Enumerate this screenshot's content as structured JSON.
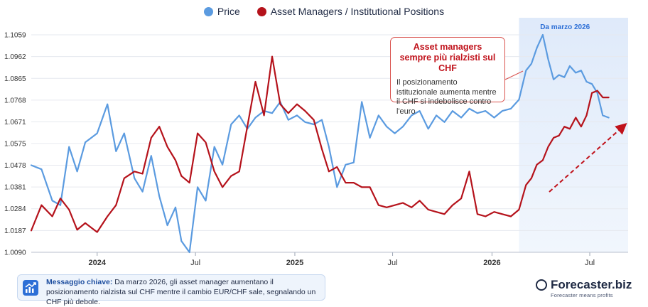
{
  "legend": {
    "price_label": "Price",
    "positions_label": "Asset Managers / Institutional Positions"
  },
  "highlight": {
    "label": "Da marzo 2026"
  },
  "callout": {
    "title_line1": "Asset managers",
    "title_line2": "sempre più rialzisti sul CHF",
    "body": "Il posizionamento istituzionale aumenta mentre il CHF si indebolisce contro l'euro"
  },
  "key_message": {
    "label": "Messaggio chiave:",
    "text": "Da marzo 2026, gli asset manager aumentano il posizionamento rialzista sul CHF mentre il cambio EUR/CHF sale, segnalando un CHF più debole."
  },
  "brand": {
    "name": "Forecaster.biz",
    "tagline": "Forecaster means profits"
  },
  "colors": {
    "price": "#5b9be0",
    "positions": "#b5121b",
    "highlight": "#e8f0fb"
  },
  "icons": {
    "key_message": "chart-trend-icon",
    "brand": "forecaster-logo-icon"
  },
  "chart_data": {
    "type": "line",
    "x_range": [
      "2023-09-01",
      "2026-09-10"
    ],
    "ylim": [
      1.009,
      1.1059
    ],
    "y_ticks": [
      "1.1059",
      "1.0962",
      "1.0865",
      "1.0768",
      "1.0671",
      "1.0575",
      "1.0478",
      "1.0381",
      "1.0284",
      "1.0187",
      "1.0090"
    ],
    "x_ticks": [
      {
        "date": "2024-01-01",
        "label": "2024",
        "bold": true
      },
      {
        "date": "2024-07-01",
        "label": "Jul",
        "bold": false
      },
      {
        "date": "2025-01-01",
        "label": "2025",
        "bold": true
      },
      {
        "date": "2025-07-01",
        "label": "Jul",
        "bold": false
      },
      {
        "date": "2026-01-01",
        "label": "2026",
        "bold": true
      },
      {
        "date": "2026-07-01",
        "label": "Jul",
        "bold": false
      }
    ],
    "grid": true,
    "highlight_range": [
      "2026-02-20",
      "2026-09-10"
    ],
    "series": [
      {
        "name": "Price",
        "x": [
          "2023-09-01",
          "2023-09-20",
          "2023-10-10",
          "2023-10-25",
          "2023-11-10",
          "2023-11-25",
          "2023-12-10",
          "2024-01-01",
          "2024-01-20",
          "2024-02-05",
          "2024-02-20",
          "2024-03-10",
          "2024-03-25",
          "2024-04-10",
          "2024-04-25",
          "2024-05-10",
          "2024-05-25",
          "2024-06-05",
          "2024-06-20",
          "2024-07-05",
          "2024-07-20",
          "2024-08-05",
          "2024-08-20",
          "2024-09-05",
          "2024-09-20",
          "2024-10-05",
          "2024-10-20",
          "2024-11-05",
          "2024-11-20",
          "2024-12-05",
          "2024-12-20",
          "2025-01-05",
          "2025-01-20",
          "2025-02-05",
          "2025-02-20",
          "2025-03-05",
          "2025-03-20",
          "2025-04-05",
          "2025-04-20",
          "2025-05-05",
          "2025-05-20",
          "2025-06-05",
          "2025-06-20",
          "2025-07-05",
          "2025-07-20",
          "2025-08-05",
          "2025-08-20",
          "2025-09-05",
          "2025-09-20",
          "2025-10-05",
          "2025-10-20",
          "2025-11-05",
          "2025-11-20",
          "2025-12-05",
          "2025-12-20",
          "2026-01-05",
          "2026-01-20",
          "2026-02-05",
          "2026-02-20",
          "2026-03-05",
          "2026-03-15",
          "2026-03-25",
          "2026-04-05",
          "2026-04-15",
          "2026-04-25",
          "2026-05-05",
          "2026-05-15",
          "2026-05-25",
          "2026-06-05",
          "2026-06-15",
          "2026-06-25",
          "2026-07-05",
          "2026-07-15",
          "2026-07-25",
          "2026-08-05"
        ],
        "values": [
          1.0478,
          1.046,
          1.032,
          1.03,
          1.056,
          1.045,
          1.058,
          1.062,
          1.075,
          1.054,
          1.062,
          1.042,
          1.036,
          1.052,
          1.034,
          1.021,
          1.029,
          1.014,
          1.009,
          1.038,
          1.032,
          1.056,
          1.048,
          1.066,
          1.07,
          1.064,
          1.069,
          1.072,
          1.071,
          1.076,
          1.068,
          1.07,
          1.067,
          1.066,
          1.068,
          1.056,
          1.038,
          1.048,
          1.049,
          1.076,
          1.06,
          1.07,
          1.065,
          1.062,
          1.065,
          1.07,
          1.072,
          1.064,
          1.07,
          1.067,
          1.072,
          1.069,
          1.073,
          1.071,
          1.072,
          1.069,
          1.072,
          1.073,
          1.077,
          1.09,
          1.093,
          1.1,
          1.1059,
          1.095,
          1.086,
          1.088,
          1.087,
          1.092,
          1.089,
          1.09,
          1.085,
          1.084,
          1.08,
          1.07,
          1.069
        ]
      },
      {
        "name": "Asset Managers / Institutional Positions",
        "x": [
          "2023-09-01",
          "2023-09-20",
          "2023-10-10",
          "2023-10-25",
          "2023-11-10",
          "2023-11-25",
          "2023-12-10",
          "2024-01-01",
          "2024-01-20",
          "2024-02-05",
          "2024-02-20",
          "2024-03-10",
          "2024-03-25",
          "2024-04-10",
          "2024-04-25",
          "2024-05-10",
          "2024-05-25",
          "2024-06-05",
          "2024-06-20",
          "2024-07-05",
          "2024-07-20",
          "2024-08-05",
          "2024-08-20",
          "2024-09-05",
          "2024-09-20",
          "2024-10-05",
          "2024-10-20",
          "2024-11-05",
          "2024-11-20",
          "2024-12-05",
          "2024-12-20",
          "2025-01-05",
          "2025-01-20",
          "2025-02-05",
          "2025-02-20",
          "2025-03-05",
          "2025-03-20",
          "2025-04-05",
          "2025-04-20",
          "2025-05-05",
          "2025-05-20",
          "2025-06-05",
          "2025-06-20",
          "2025-07-05",
          "2025-07-20",
          "2025-08-05",
          "2025-08-20",
          "2025-09-05",
          "2025-09-20",
          "2025-10-05",
          "2025-10-20",
          "2025-11-05",
          "2025-11-20",
          "2025-12-05",
          "2025-12-20",
          "2026-01-05",
          "2026-01-20",
          "2026-02-05",
          "2026-02-20",
          "2026-03-05",
          "2026-03-15",
          "2026-03-25",
          "2026-04-05",
          "2026-04-15",
          "2026-04-25",
          "2026-05-05",
          "2026-05-15",
          "2026-05-25",
          "2026-06-05",
          "2026-06-15",
          "2026-06-25",
          "2026-07-05",
          "2026-07-15",
          "2026-07-25",
          "2026-08-05"
        ],
        "values": [
          1.0187,
          1.03,
          1.025,
          1.033,
          1.028,
          1.019,
          1.022,
          1.018,
          1.025,
          1.03,
          1.042,
          1.045,
          1.044,
          1.06,
          1.065,
          1.056,
          1.05,
          1.043,
          1.04,
          1.062,
          1.058,
          1.045,
          1.038,
          1.043,
          1.045,
          1.065,
          1.085,
          1.07,
          1.0962,
          1.075,
          1.071,
          1.075,
          1.072,
          1.068,
          1.055,
          1.045,
          1.047,
          1.04,
          1.04,
          1.038,
          1.038,
          1.03,
          1.029,
          1.03,
          1.031,
          1.029,
          1.032,
          1.028,
          1.027,
          1.026,
          1.03,
          1.033,
          1.045,
          1.026,
          1.025,
          1.027,
          1.026,
          1.025,
          1.028,
          1.039,
          1.042,
          1.048,
          1.05,
          1.056,
          1.06,
          1.061,
          1.065,
          1.064,
          1.069,
          1.065,
          1.07,
          1.08,
          1.081,
          1.078,
          1.078
        ]
      }
    ]
  }
}
